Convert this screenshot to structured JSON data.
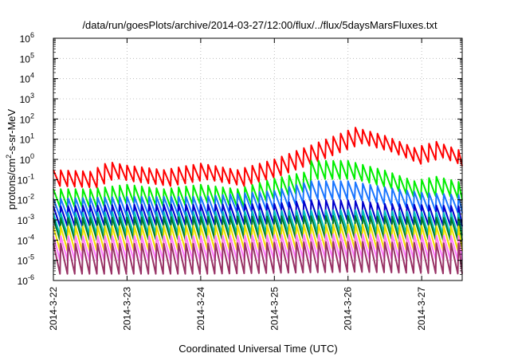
{
  "chart_data": {
    "type": "line",
    "title": "/data/run/goesPlots/archive/2014-03-27/12:00/flux/../flux/5daysMarsFluxes.txt",
    "xlabel": "Coordinated Universal Time (UTC)",
    "ylabel_prefix": "protons/cm",
    "ylabel_sup": "2",
    "ylabel_suffix": "-s-sr-MeV",
    "yscale": "log",
    "ylim": [
      1e-06,
      1000000.0
    ],
    "xlim_days": [
      0,
      5.55
    ],
    "grid": true,
    "yticks": [
      {
        "base": "10",
        "exp": "-6"
      },
      {
        "base": "10",
        "exp": "-5"
      },
      {
        "base": "10",
        "exp": "-4"
      },
      {
        "base": "10",
        "exp": "-3"
      },
      {
        "base": "10",
        "exp": "-2"
      },
      {
        "base": "10",
        "exp": "-1"
      },
      {
        "base": "10",
        "exp": "0"
      },
      {
        "base": "10",
        "exp": "1"
      },
      {
        "base": "10",
        "exp": "2"
      },
      {
        "base": "10",
        "exp": "3"
      },
      {
        "base": "10",
        "exp": "4"
      },
      {
        "base": "10",
        "exp": "5"
      },
      {
        "base": "10",
        "exp": "6"
      }
    ],
    "xticks": [
      "2014-3-22",
      "2014-3-23",
      "2014-3-24",
      "2014-3-25",
      "2014-3-26",
      "2014-3-27"
    ],
    "series": [
      {
        "color": "#ff0000",
        "base_points": [
          [
            0,
            0.12
          ],
          [
            0.5,
            0.1
          ],
          [
            0.75,
            0.3
          ],
          [
            1.0,
            0.2
          ],
          [
            1.5,
            0.12
          ],
          [
            2.0,
            0.25
          ],
          [
            2.5,
            0.12
          ],
          [
            3.0,
            0.4
          ],
          [
            3.5,
            2
          ],
          [
            4.1,
            15
          ],
          [
            4.5,
            6
          ],
          [
            4.9,
            1.5
          ],
          [
            5.2,
            3
          ],
          [
            5.55,
            1
          ]
        ],
        "amp": 0.4,
        "period": 0.1
      },
      {
        "color": "#00ee00",
        "base_points": [
          [
            0,
            0.012
          ],
          [
            0.5,
            0.012
          ],
          [
            1.0,
            0.02
          ],
          [
            1.5,
            0.012
          ],
          [
            2.0,
            0.02
          ],
          [
            2.5,
            0.012
          ],
          [
            3.0,
            0.04
          ],
          [
            3.4,
            0.08
          ],
          [
            3.5,
            0.3
          ],
          [
            4.0,
            0.3
          ],
          [
            4.5,
            0.1
          ],
          [
            4.9,
            0.03
          ],
          [
            5.2,
            0.05
          ],
          [
            5.55,
            0.025
          ]
        ],
        "amp": 0.45,
        "period": 0.1
      },
      {
        "color": "#1a75ff",
        "base_points": [
          [
            0,
            0.004
          ],
          [
            1.0,
            0.005
          ],
          [
            2.0,
            0.005
          ],
          [
            3.0,
            0.01
          ],
          [
            3.5,
            0.03
          ],
          [
            4.0,
            0.03
          ],
          [
            4.5,
            0.015
          ],
          [
            5.0,
            0.008
          ],
          [
            5.55,
            0.006
          ]
        ],
        "amp": 0.45,
        "period": 0.1
      },
      {
        "color": "#0000cc",
        "base_points": [
          [
            0,
            0.0015
          ],
          [
            1.0,
            0.0018
          ],
          [
            2.0,
            0.0018
          ],
          [
            3.0,
            0.002
          ],
          [
            3.5,
            0.003
          ],
          [
            4.0,
            0.003
          ],
          [
            4.5,
            0.002
          ],
          [
            5.55,
            0.0015
          ]
        ],
        "amp": 0.5,
        "period": 0.1
      },
      {
        "color": "#00bfbf",
        "base_points": [
          [
            0,
            0.0006
          ],
          [
            1.0,
            0.0007
          ],
          [
            2.0,
            0.0007
          ],
          [
            3.0,
            0.0008
          ],
          [
            4.0,
            0.0009
          ],
          [
            5.55,
            0.0006
          ]
        ],
        "amp": 0.55,
        "period": 0.1
      },
      {
        "color": "#007a2e",
        "base_points": [
          [
            0,
            0.00035
          ],
          [
            2.0,
            0.0004
          ],
          [
            4.0,
            0.00045
          ],
          [
            5.55,
            0.00035
          ]
        ],
        "amp": 0.55,
        "period": 0.1
      },
      {
        "color": "#f0e000",
        "base_points": [
          [
            0,
            0.00012
          ],
          [
            2.0,
            0.00013
          ],
          [
            4.0,
            0.00015
          ],
          [
            5.55,
            0.00012
          ]
        ],
        "amp": 0.6,
        "period": 0.1
      },
      {
        "color": "#ff7aff",
        "base_points": [
          [
            0,
            4e-05
          ],
          [
            2.0,
            4e-05
          ],
          [
            4.0,
            5e-05
          ],
          [
            5.55,
            4e-05
          ]
        ],
        "amp": 0.6,
        "period": 0.1
      },
      {
        "color": "#993366",
        "base_points": [
          [
            0,
            1.2e-05
          ],
          [
            2.0,
            1.2e-05
          ],
          [
            4.0,
            1.5e-05
          ],
          [
            5.55,
            1.2e-05
          ]
        ],
        "amp": 0.75,
        "period": 0.1
      }
    ]
  }
}
